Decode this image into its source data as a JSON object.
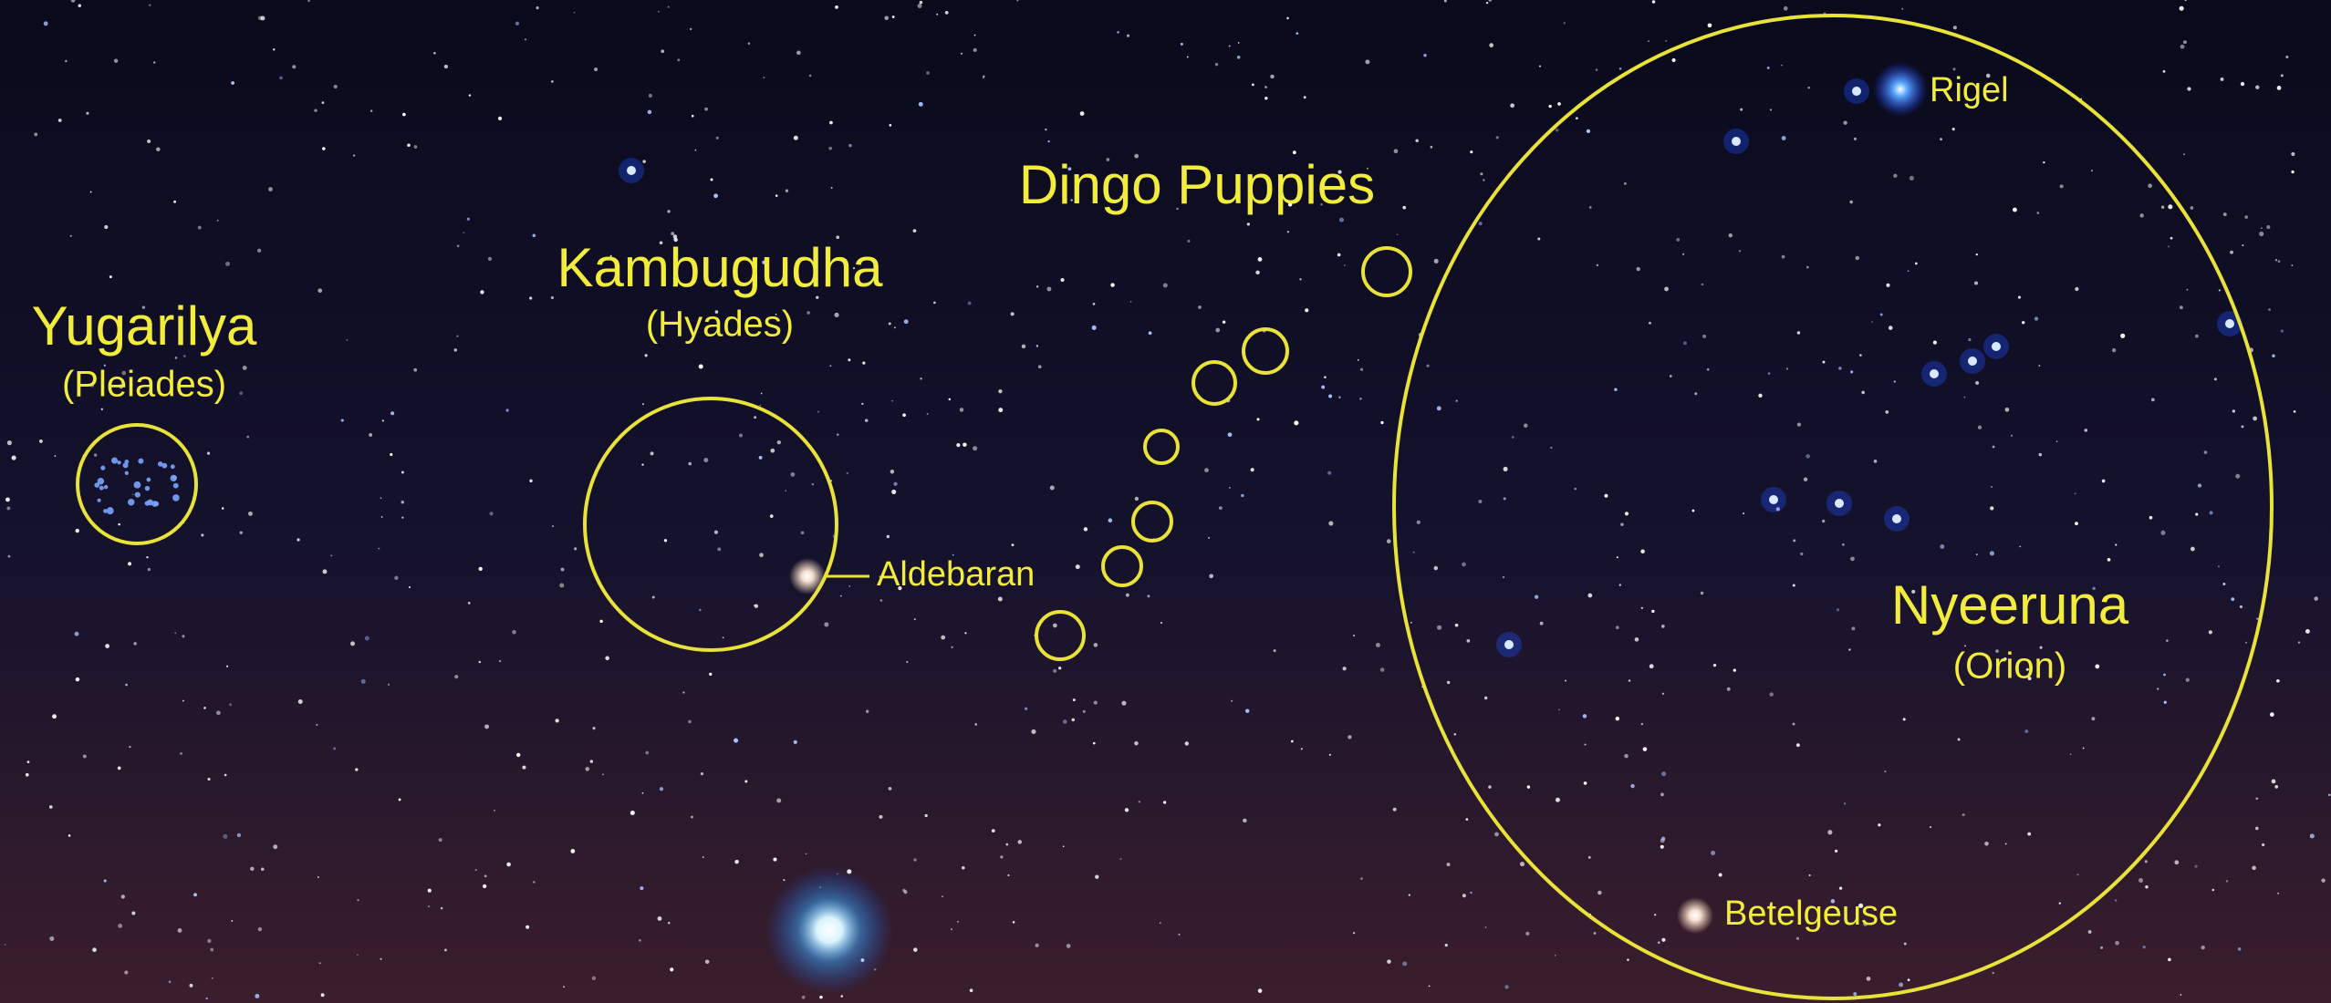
{
  "labels": {
    "pleiades": {
      "name": "Yugarilya",
      "western": "(Pleiades)"
    },
    "hyades": {
      "name": "Kambugudha",
      "western": "(Hyades)"
    },
    "dingo": {
      "name": "Dingo Puppies"
    },
    "aldebaran": "Aldebaran",
    "rigel": "Rigel",
    "orion": {
      "name": "Nyeeruna",
      "western": "(Orion)"
    },
    "betelgeuse": "Betelgeuse"
  }
}
